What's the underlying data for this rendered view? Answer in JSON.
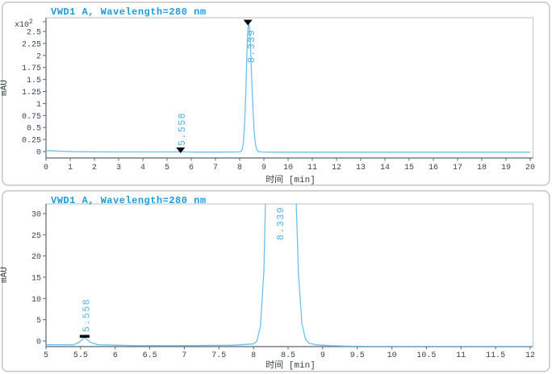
{
  "colors": {
    "title_blue": "#1e9bdc",
    "trace_blue": "#6cc0f0",
    "peak_label_blue": "#4fb2ea",
    "axis_dark": "#5d6670",
    "frame_light": "#c6cacd",
    "tick_text": "#39434e",
    "panel_border": "#c6c6c6",
    "marker_black": "#000000"
  },
  "chart_data": [
    {
      "type": "line",
      "title": "VWD1 A, Wavelength=280 nm",
      "xlabel": "时间 [min]",
      "ylabel": "mAU",
      "y_multiplier": "x10",
      "y_multiplier_exp": "2",
      "x_range": [
        0,
        20
      ],
      "y_range_mAU": [
        -13,
        278
      ],
      "grid": false,
      "legend": false,
      "x_ticks": [
        {
          "v": 0,
          "label": "0"
        },
        {
          "v": 1,
          "label": "1"
        },
        {
          "v": 2,
          "label": "2"
        },
        {
          "v": 3,
          "label": "3"
        },
        {
          "v": 4,
          "label": "4"
        },
        {
          "v": 5,
          "label": "5"
        },
        {
          "v": 6,
          "label": "6"
        },
        {
          "v": 7,
          "label": "7"
        },
        {
          "v": 8,
          "label": "8"
        },
        {
          "v": 9,
          "label": "9"
        },
        {
          "v": 10,
          "label": "10"
        },
        {
          "v": 11,
          "label": "11"
        },
        {
          "v": 12,
          "label": "12"
        },
        {
          "v": 13,
          "label": "13"
        },
        {
          "v": 14,
          "label": "14"
        },
        {
          "v": 15,
          "label": "15"
        },
        {
          "v": 16,
          "label": "16"
        },
        {
          "v": 17,
          "label": "17"
        },
        {
          "v": 18,
          "label": "18"
        },
        {
          "v": 19,
          "label": "19"
        },
        {
          "v": 20,
          "label": "20"
        }
      ],
      "y_ticks": [
        {
          "v": 0,
          "label": "0"
        },
        {
          "v": 25,
          "label": "0.25"
        },
        {
          "v": 50,
          "label": "0.5"
        },
        {
          "v": 75,
          "label": "0.75"
        },
        {
          "v": 100,
          "label": "1"
        },
        {
          "v": 125,
          "label": "1.25"
        },
        {
          "v": 150,
          "label": "1.5"
        },
        {
          "v": 175,
          "label": "1.75"
        },
        {
          "v": 200,
          "label": "2"
        },
        {
          "v": 225,
          "label": "2.25"
        },
        {
          "v": 250,
          "label": "2.5"
        }
      ],
      "peaks": [
        {
          "t": 5.558,
          "label": "5.558",
          "marker": "triangle"
        },
        {
          "t": 8.339,
          "label": "8.339",
          "marker": "triangle",
          "apex_mAU": 268
        }
      ]
    },
    {
      "type": "line",
      "title": "VWD1 A, Wavelength=280 nm",
      "xlabel": "时间 [min]",
      "ylabel": "mAU",
      "y_multiplier": "",
      "y_multiplier_exp": "",
      "x_range": [
        5,
        12
      ],
      "y_range_mAU": [
        -1.3,
        32.3
      ],
      "grid": false,
      "legend": false,
      "x_ticks": [
        {
          "v": 5,
          "label": "5"
        },
        {
          "v": 5.5,
          "label": "5.5"
        },
        {
          "v": 6,
          "label": "6"
        },
        {
          "v": 6.5,
          "label": "6.5"
        },
        {
          "v": 7,
          "label": "7"
        },
        {
          "v": 7.5,
          "label": "7.5"
        },
        {
          "v": 8,
          "label": "8"
        },
        {
          "v": 8.5,
          "label": "8.5"
        },
        {
          "v": 9,
          "label": "9"
        },
        {
          "v": 9.5,
          "label": "9.5"
        },
        {
          "v": 10,
          "label": "10"
        },
        {
          "v": 10.5,
          "label": "10.5"
        },
        {
          "v": 11,
          "label": "11"
        },
        {
          "v": 11.5,
          "label": "11.5"
        },
        {
          "v": 12,
          "label": "12"
        }
      ],
      "y_ticks": [
        {
          "v": 0,
          "label": "0"
        },
        {
          "v": 5,
          "label": "5"
        },
        {
          "v": 10,
          "label": "10"
        },
        {
          "v": 15,
          "label": "15"
        },
        {
          "v": 20,
          "label": "20"
        },
        {
          "v": 25,
          "label": "25"
        },
        {
          "v": 30,
          "label": "30"
        }
      ],
      "peaks": [
        {
          "t": 5.558,
          "label": "5.558",
          "marker": "dash"
        },
        {
          "t": 8.339,
          "label": "8.339",
          "marker": "none",
          "clipped": true
        }
      ]
    }
  ],
  "trace_mAU": [
    [
      0,
      2.0
    ],
    [
      0.3,
      1.4
    ],
    [
      0.7,
      0.4
    ],
    [
      1.1,
      -0.2
    ],
    [
      1.6,
      -0.5
    ],
    [
      2.1,
      -0.7
    ],
    [
      2.7,
      -0.8
    ],
    [
      3.2,
      -0.9
    ],
    [
      4,
      -0.9
    ],
    [
      5,
      -0.9
    ],
    [
      5.4,
      -0.9
    ],
    [
      5.48,
      -0.3
    ],
    [
      5.558,
      0.8
    ],
    [
      5.64,
      -0.3
    ],
    [
      5.75,
      -0.9
    ],
    [
      6.3,
      -1.1
    ],
    [
      7,
      -1.1
    ],
    [
      7.7,
      -1.0
    ],
    [
      8,
      -0.7
    ],
    [
      8.05,
      0
    ],
    [
      8.1,
      3.5
    ],
    [
      8.15,
      16.5
    ],
    [
      8.2,
      52.5
    ],
    [
      8.25,
      119.5
    ],
    [
      8.3,
      203.8
    ],
    [
      8.34,
      254.8
    ],
    [
      8.37,
      268
    ],
    [
      8.4,
      259.7
    ],
    [
      8.45,
      214.2
    ],
    [
      8.5,
      148.1
    ],
    [
      8.55,
      85.7
    ],
    [
      8.6,
      41
    ],
    [
      8.65,
      15.7
    ],
    [
      8.7,
      4.2
    ],
    [
      8.75,
      0.5
    ],
    [
      8.8,
      -0.5
    ],
    [
      8.9,
      -0.9
    ],
    [
      9.1,
      -1.1
    ],
    [
      9.6,
      -1.3
    ],
    [
      10,
      -1.3
    ],
    [
      11,
      -1.3
    ],
    [
      12,
      -1.3
    ],
    [
      13,
      -1.3
    ],
    [
      14,
      -1.3
    ],
    [
      15,
      -1.3
    ],
    [
      16,
      -1.3
    ],
    [
      17,
      -1.3
    ],
    [
      18,
      -1.3
    ],
    [
      19,
      -1.3
    ],
    [
      20,
      -1.3
    ]
  ]
}
